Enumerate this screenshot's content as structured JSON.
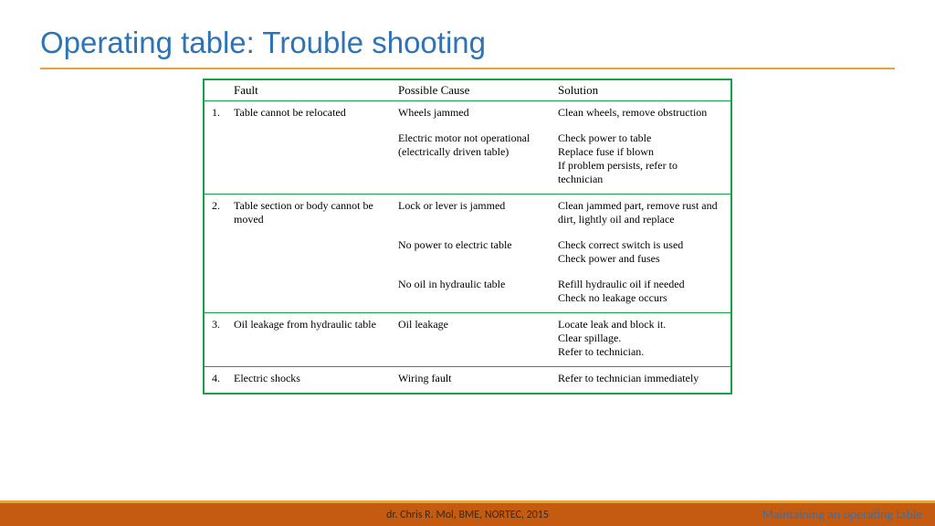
{
  "title": {
    "text": "Operating table: Trouble shooting",
    "color": "#2e74b5",
    "fontsize": 33
  },
  "rule_color": "#e8a33d",
  "table": {
    "border_color": "#18a048",
    "header_fontsize": 13,
    "cell_fontsize": 12,
    "columns": [
      "Fault",
      "Possible Cause",
      "Solution"
    ],
    "rows": [
      {
        "num": "1.",
        "fault": "Table cannot be relocated",
        "items": [
          {
            "cause": "Wheels jammed",
            "solution": "Clean wheels, remove obstruction"
          },
          {
            "cause": "Electric motor not operational (electrically driven table)",
            "solution": "Check power to table\nReplace fuse if blown\nIf problem persists, refer to technician"
          }
        ]
      },
      {
        "num": "2.",
        "fault": "Table section or body cannot be moved",
        "items": [
          {
            "cause": "Lock or lever is jammed",
            "solution": "Clean jammed part, remove rust and dirt, lightly oil and replace"
          },
          {
            "cause": "No power to electric table",
            "solution": "Check correct switch is used\nCheck power and fuses"
          },
          {
            "cause": "No oil in hydraulic table",
            "solution": "Refill hydraulic oil if needed\nCheck no leakage occurs"
          }
        ]
      },
      {
        "num": "3.",
        "fault": "Oil leakage from hydraulic table",
        "items": [
          {
            "cause": "Oil leakage",
            "solution": "Locate leak and block it.\nClear spillage.\nRefer to technician."
          }
        ]
      },
      {
        "num": "4.",
        "fault": "Electric shocks",
        "items": [
          {
            "cause": "Wiring fault",
            "solution": "Refer to technician immediately"
          }
        ]
      }
    ]
  },
  "footer": {
    "bar_color": "#c55a11",
    "top_line_color": "#e8a33d",
    "center_text": "dr. Chris R. Mol, BME, NORTEC, 2015",
    "center_color": "#3a2a1a",
    "center_fontsize": 12,
    "right_text": "Maintaining an operating table",
    "right_color": "#3d6fa5",
    "right_fontsize": 14
  }
}
